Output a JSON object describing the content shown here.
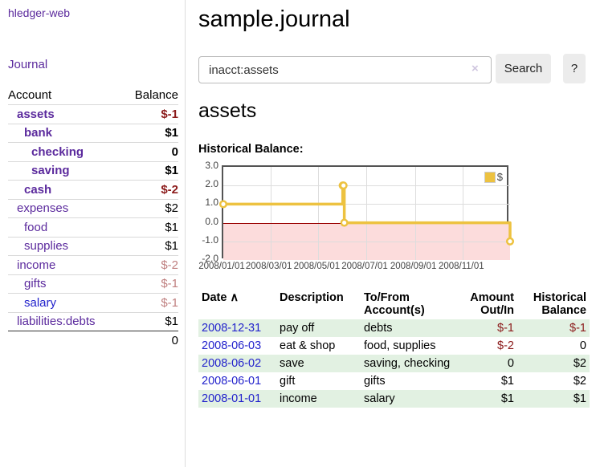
{
  "app": {
    "brand": "hledger-web"
  },
  "sidebar": {
    "journal_link": "Journal",
    "accounts": {
      "header": {
        "account": "Account",
        "balance": "Balance"
      },
      "rows": [
        {
          "name": "assets",
          "balance": "$-1"
        },
        {
          "name": "bank",
          "balance": "$1"
        },
        {
          "name": "checking",
          "balance": "0"
        },
        {
          "name": "saving",
          "balance": "$1"
        },
        {
          "name": "cash",
          "balance": "$-2"
        },
        {
          "name": "expenses",
          "balance": "$2"
        },
        {
          "name": "food",
          "balance": "$1"
        },
        {
          "name": "supplies",
          "balance": "$1"
        },
        {
          "name": "income",
          "balance": "$-2"
        },
        {
          "name": "gifts",
          "balance": "$-1"
        },
        {
          "name": "salary",
          "balance": "$-1"
        },
        {
          "name": "liabilities:debts",
          "balance": "$1"
        }
      ],
      "total": "0"
    }
  },
  "main": {
    "title": "sample.journal",
    "search": {
      "value": "inacct:assets",
      "clear": "×",
      "button": "Search",
      "help": "?"
    },
    "account_heading": "assets",
    "chart_label": "Historical Balance:"
  },
  "chart_data": {
    "type": "line",
    "step": true,
    "title": "Historical Balance:",
    "legend_label": "$",
    "legend_position": "top-right",
    "series": [
      {
        "name": "$",
        "points": [
          [
            "2008-01-01",
            1.0
          ],
          [
            "2008-06-01",
            2.0
          ],
          [
            "2008-06-02",
            2.0
          ],
          [
            "2008-06-03",
            0.0
          ],
          [
            "2008-12-31",
            -1.0
          ]
        ]
      }
    ],
    "xlim": [
      "2008-01-01",
      "2008-12-31"
    ],
    "ylim": [
      -2.0,
      3.0
    ],
    "yticks": [
      "3.0",
      "2.0",
      "1.0",
      "0.0",
      "-1.0",
      "-2.0"
    ],
    "xticks": [
      "2008/01/01",
      "2008/03/01",
      "2008/05/01",
      "2008/07/01",
      "2008/09/01",
      "2008/11/01"
    ],
    "grid": true,
    "line_color": "#edc240",
    "negative_region_color": "#fcdcdc",
    "zero_line_color": "#990000"
  },
  "register": {
    "headers": {
      "date": "Date",
      "sort_icon": "∧",
      "description": "Description",
      "accounts": "To/From Account(s)",
      "amount": "Amount Out/In",
      "balance": "Historical Balance"
    },
    "rows": [
      {
        "date": "2008-12-31",
        "description": "pay off",
        "accounts": "debts",
        "amount": "$-1",
        "balance": "$-1"
      },
      {
        "date": "2008-06-03",
        "description": "eat & shop",
        "accounts": "food, supplies",
        "amount": "$-2",
        "balance": "0"
      },
      {
        "date": "2008-06-02",
        "description": "save",
        "accounts": "saving, checking",
        "amount": "0",
        "balance": "$2"
      },
      {
        "date": "2008-06-01",
        "description": "gift",
        "accounts": "gifts",
        "amount": "$1",
        "balance": "$2"
      },
      {
        "date": "2008-01-01",
        "description": "income",
        "accounts": "salary",
        "amount": "$1",
        "balance": "$1"
      }
    ]
  }
}
